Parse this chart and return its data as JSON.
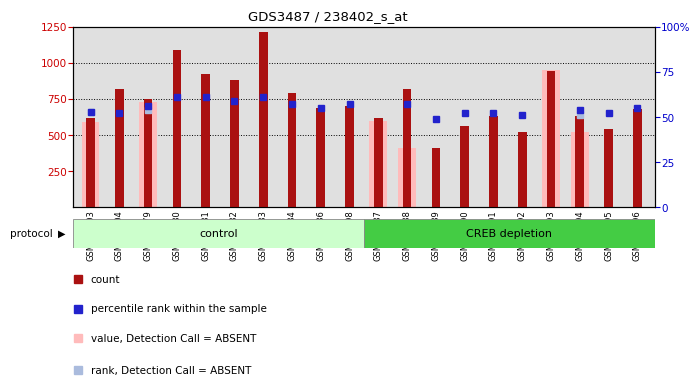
{
  "title": "GDS3487 / 238402_s_at",
  "samples": [
    "GSM304303",
    "GSM304304",
    "GSM304479",
    "GSM304480",
    "GSM304481",
    "GSM304482",
    "GSM304483",
    "GSM304484",
    "GSM304486",
    "GSM304498",
    "GSM304487",
    "GSM304488",
    "GSM304489",
    "GSM304490",
    "GSM304491",
    "GSM304492",
    "GSM304493",
    "GSM304494",
    "GSM304495",
    "GSM304496"
  ],
  "count_values": [
    620,
    820,
    750,
    1090,
    920,
    880,
    1215,
    790,
    690,
    700,
    620,
    820,
    410,
    560,
    630,
    520,
    940,
    630,
    540,
    680
  ],
  "absent_value_bars": [
    590,
    null,
    730,
    null,
    null,
    null,
    null,
    null,
    null,
    null,
    600,
    410,
    null,
    null,
    null,
    null,
    950,
    520,
    null,
    null
  ],
  "percentile_rank": [
    53,
    52,
    56,
    61,
    61,
    59,
    61,
    57,
    55,
    57,
    null,
    57,
    49,
    52,
    52,
    51,
    null,
    54,
    52,
    55
  ],
  "absent_rank_dots": [
    53,
    null,
    54,
    null,
    null,
    null,
    null,
    null,
    null,
    null,
    null,
    null,
    null,
    null,
    null,
    null,
    null,
    51,
    null,
    null
  ],
  "control_count": 10,
  "ylim_left": [
    0,
    1250
  ],
  "ylim_right": [
    0,
    100
  ],
  "yticks_left": [
    250,
    500,
    750,
    1000,
    1250
  ],
  "yticks_right": [
    0,
    25,
    50,
    75,
    100
  ],
  "bar_color": "#aa1111",
  "absent_bar_color": "#ffbbbb",
  "rank_dot_color": "#2222cc",
  "absent_rank_dot_color": "#aabbdd",
  "grid_lines": [
    500,
    750,
    1000
  ],
  "bg_color": "#e0e0e0",
  "control_bg": "#ccffcc",
  "creb_bg": "#44cc44",
  "control_label": "control",
  "creb_label": "CREB depletion",
  "protocol_label": "protocol",
  "legend": [
    {
      "color": "#aa1111",
      "marker": "s",
      "label": "count"
    },
    {
      "color": "#2222cc",
      "marker": "s",
      "label": "percentile rank within the sample"
    },
    {
      "color": "#ffbbbb",
      "marker": "s",
      "label": "value, Detection Call = ABSENT"
    },
    {
      "color": "#aabbdd",
      "marker": "s",
      "label": "rank, Detection Call = ABSENT"
    }
  ]
}
